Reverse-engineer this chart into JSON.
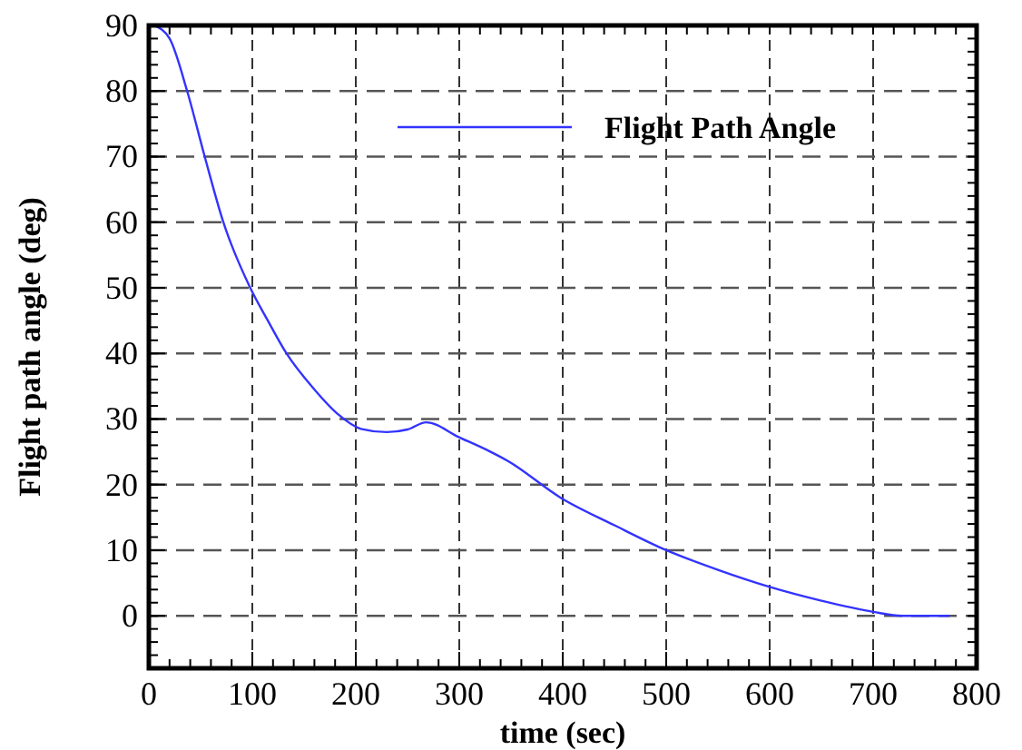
{
  "chart_data": {
    "type": "line",
    "xlabel": "time (sec)",
    "ylabel": "Flight path angle (deg)",
    "xlim": [
      0,
      800
    ],
    "xticks": [
      0,
      100,
      200,
      300,
      400,
      500,
      600,
      700,
      800
    ],
    "ylim": [
      -8,
      90
    ],
    "yticks": [
      0,
      10,
      20,
      30,
      40,
      50,
      60,
      70,
      80,
      90
    ],
    "grid": true,
    "legend": "top right",
    "line_style": "solid",
    "series": [
      {
        "name": "Flight Path Angle",
        "color": "#3333ff",
        "x": [
          5,
          20,
          37,
          54,
          72,
          98,
          115,
          133,
          160,
          183,
          205,
          230,
          250,
          268,
          300,
          329,
          347,
          398,
          450,
          500,
          550,
          600,
          650,
          700,
          728,
          750,
          774
        ],
        "values": [
          90,
          88,
          80,
          70,
          60,
          50,
          45,
          40,
          34.5,
          30.7,
          28.5,
          28,
          28.4,
          29.5,
          27.2,
          25.1,
          23.6,
          18,
          13.8,
          10,
          7,
          4.4,
          2.3,
          0.6,
          0,
          0,
          0
        ]
      }
    ]
  }
}
